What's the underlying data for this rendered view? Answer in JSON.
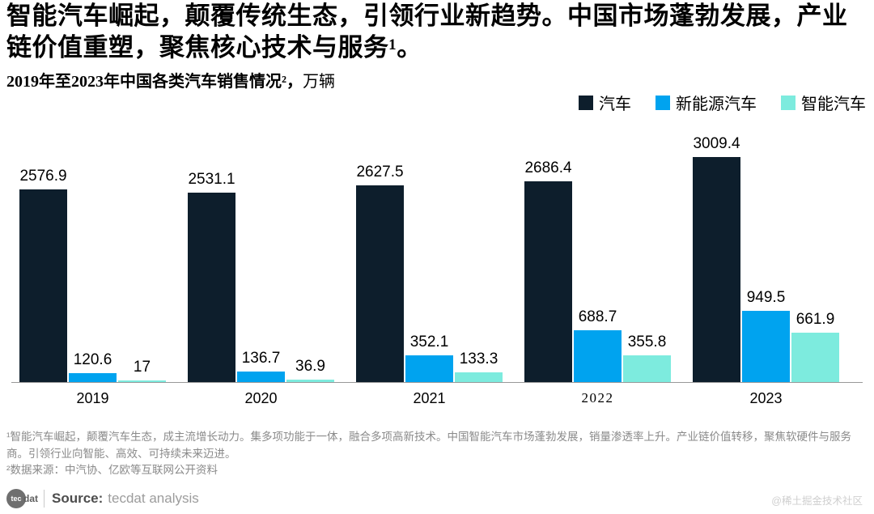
{
  "title": "智能汽车崛起，颠覆传统生态，引领行业新趋势。中国市场蓬勃发展，产业链价值重塑，聚焦核心技术与服务¹。",
  "subtitle": {
    "main": "2019年至2023年中国各类汽车销售情况²，",
    "unit": "万辆"
  },
  "legend": [
    {
      "label": "汽车",
      "color": "#0d1e2c"
    },
    {
      "label": "新能源汽车",
      "color": "#00a3ef"
    },
    {
      "label": "智能汽车",
      "color": "#7debde"
    }
  ],
  "chart_data": {
    "type": "bar",
    "categories": [
      "2019",
      "2020",
      "2021",
      "2022",
      "2023"
    ],
    "series": [
      {
        "name": "汽车",
        "color": "#0d1e2c",
        "values": [
          2576.9,
          2531.1,
          2627.5,
          2686.4,
          3009.4
        ]
      },
      {
        "name": "新能源汽车",
        "color": "#00a3ef",
        "values": [
          120.6,
          136.7,
          352.1,
          688.7,
          949.5
        ]
      },
      {
        "name": "智能汽车",
        "color": "#7debde",
        "values": [
          17,
          36.9,
          133.3,
          355.8,
          661.9
        ]
      }
    ],
    "title": "2019年至2023年中国各类汽车销售情况，万辆",
    "xlabel": "",
    "ylabel": "",
    "ylim": [
      0,
      3100
    ],
    "grid": false,
    "legend_position": "top-right",
    "value_labels": true
  },
  "footnotes": [
    "¹智能汽车崛起，颠覆汽车生态，成主流增长动力。集多项功能于一体，融合多项高新技术。中国智能汽车市场蓬勃发展，销量渗透率上升。产业链价值转移，聚焦软硬件与服务商。引领行业向智能、高效、可持续未来迈进。",
    "²数据来源：中汽协、亿欧等互联网公开资料"
  ],
  "footer": {
    "logo_circle": "tec",
    "logo_rest": "dat",
    "source_label": "Source:",
    "source_value": "tecdat analysis",
    "watermark": "@稀土掘金技术社区"
  }
}
